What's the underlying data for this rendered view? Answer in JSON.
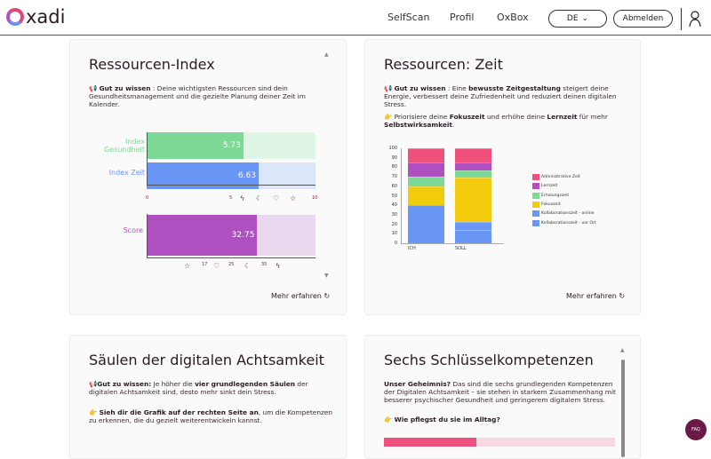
{
  "header": {
    "logo": "xadi",
    "nav": [
      "SelfScan",
      "Profil",
      "OxBox"
    ],
    "language": "DE",
    "logout": "Abmelden"
  },
  "cards": {
    "index": {
      "title": "Ressourcen-Index",
      "note_label": "Gut zu wissen",
      "note": " : Deine wichtigsten Ressourcen sind dein Gesundheitsmanagement und die gezielte Planung deiner Zeit im Kalender.",
      "more": "Mehr erfahren",
      "bars": [
        {
          "label": "Index Gesundheit",
          "value": 5.73,
          "display": "5.73",
          "max": 10,
          "color": "#7ed896",
          "bg": "#dff5e5"
        },
        {
          "label": "Index Zeit",
          "value": 6.63,
          "display": "6.63",
          "max": 10,
          "color": "#6a96f6",
          "bg": "#dce6fb"
        }
      ],
      "axis": {
        "ticks": [
          "0",
          "5",
          "10"
        ],
        "icons": [
          "bolt-icon",
          "moon-icon",
          "heart-icon",
          "star-icon"
        ]
      },
      "score": {
        "label": "Score",
        "value": 32.75,
        "display": "32.75",
        "max": 50,
        "color": "#b050c0",
        "bg": "#ead8ee",
        "ticks": [
          "17",
          "25",
          "35"
        ],
        "icons": [
          "star-icon",
          "heart-icon",
          "moon-icon",
          "bolt-icon"
        ]
      }
    },
    "zeit": {
      "title": "Ressourcen: Zeit",
      "note_label": "Gut zu wissen",
      "note_a": " : Eine ",
      "note_b": "bewusste Zeitgestaltung",
      "note_c": " steigert deine Energie, verbessert deine Zufriedenheit und reduziert deinen digitalen Stress.",
      "tip_a": "Priorisiere deine ",
      "tip_b": "Fokuszeit",
      "tip_c": " und erhöhe deine ",
      "tip_d": "Lernzeit",
      "tip_e": " für mehr ",
      "tip_f": "Selbstwirksamkeit",
      "tip_g": ".",
      "more": "Mehr erfahren"
    },
    "saeulen": {
      "title": "Säulen der digitalen Achtsamkeit",
      "note_label": "Gut zu wissen:",
      "note_a": " Je höher die ",
      "note_b": "vier grundlegenden Säulen",
      "note_c": " der digitalen Achtsamkeit sind, desto mehr sinkt dein Stress.",
      "tip_b": "Sieh dir die Grafik auf der rechten Seite an",
      "tip_c": ", um die Kompetenzen zu erkennen, die du gezielt weiterentwickeln kannst."
    },
    "sechs": {
      "title": "Sechs Schlüsselkompetenzen",
      "lead": "Unser Geheimnis?",
      "text": " Das sind die sechs grundlegenden Kompetenzen der Digitalen Achtsamkeit – sie stehen in starkem Zusammenhang mit besserer psychischer Gesundheit und geringerem digitalem Stress.",
      "tip": "Wie pflegst du sie im Alltag?"
    }
  },
  "faq": "FAQ",
  "chart_data": {
    "type": "bar",
    "stacked": true,
    "categories": [
      "ICH",
      "SOLL"
    ],
    "ylim": [
      0,
      100
    ],
    "yticks": [
      0,
      10,
      20,
      30,
      40,
      50,
      60,
      70,
      80,
      90,
      100
    ],
    "legend": "right",
    "series": [
      {
        "name": "Kollaborationszeit - vor Ort",
        "color": "#6a96f6",
        "values": [
          40,
          14
        ]
      },
      {
        "name": "Kollaborationszeit - online",
        "color": "#6a96f6",
        "values": [
          0,
          8
        ]
      },
      {
        "name": "Fokuszeit",
        "color": "#f2cc0c",
        "values": [
          20,
          47
        ]
      },
      {
        "name": "Erholungszeit",
        "color": "#7ed896",
        "values": [
          10,
          8
        ]
      },
      {
        "name": "Lernzeit",
        "color": "#b050c0",
        "values": [
          15,
          8
        ]
      },
      {
        "name": "Administrative Zeit",
        "color": "#f0507c",
        "values": [
          15,
          15
        ]
      }
    ]
  }
}
